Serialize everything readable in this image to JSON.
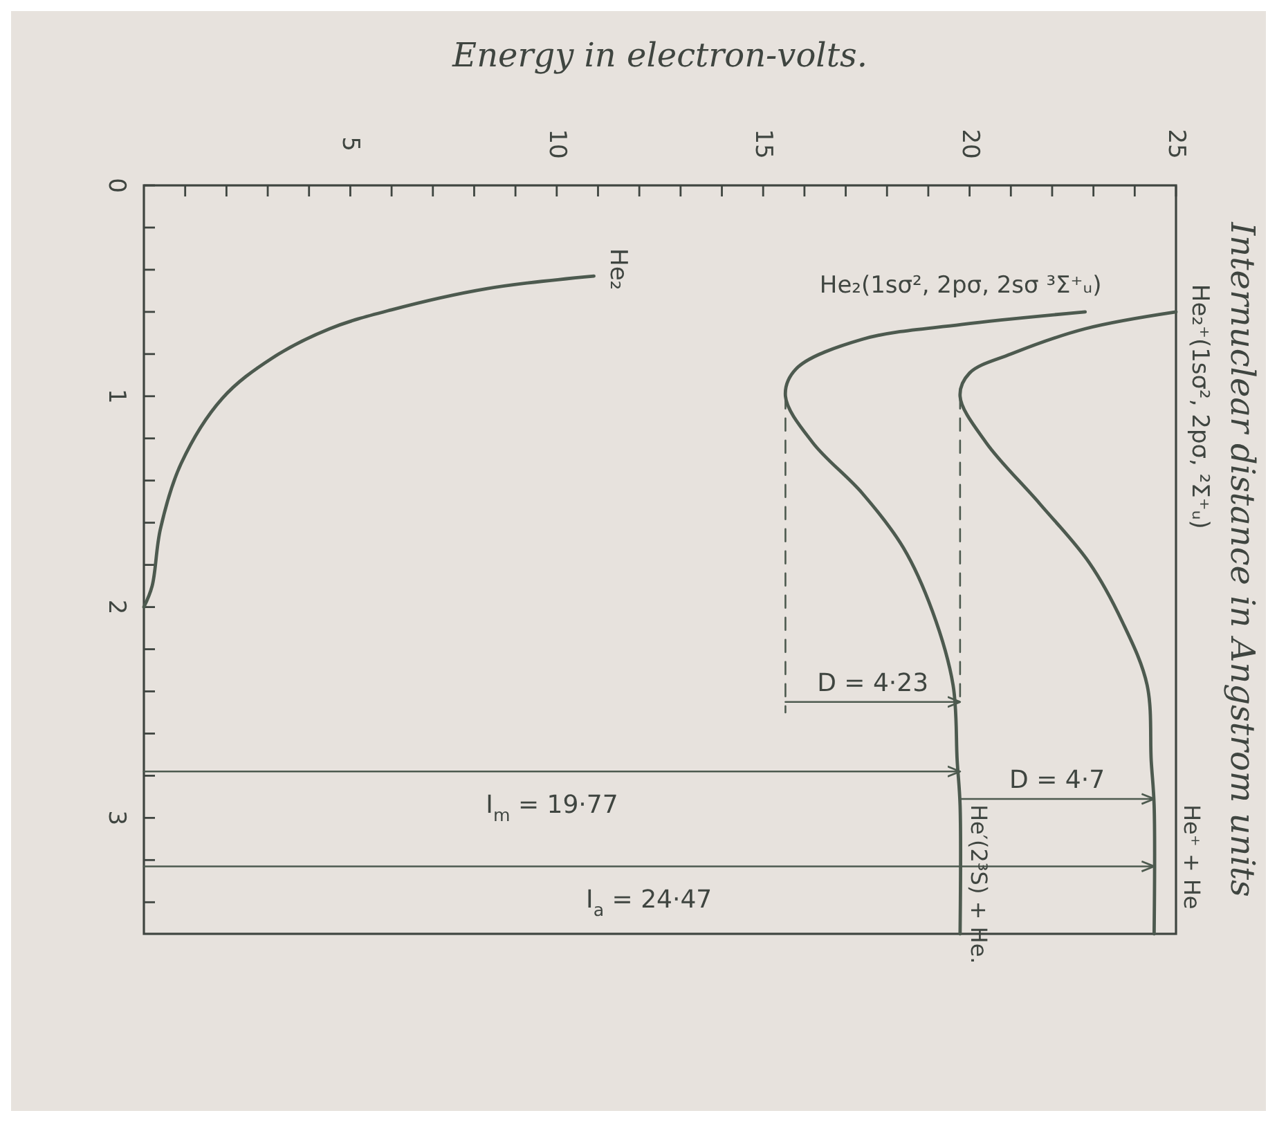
{
  "chart_data": {
    "type": "line",
    "xlabel": "Energy in electron-volts.",
    "ylabel": "Internuclear distance in Angstrom units",
    "xlim": [
      0,
      25
    ],
    "ylim": [
      3.55,
      0
    ],
    "xticks": [
      {
        "value": 1,
        "label": null
      },
      {
        "value": 2,
        "label": null
      },
      {
        "value": 3,
        "label": null
      },
      {
        "value": 4,
        "label": null
      },
      5,
      {
        "value": 6,
        "label": null
      },
      {
        "value": 7,
        "label": null
      },
      {
        "value": 8,
        "label": null
      },
      {
        "value": 9,
        "label": null
      },
      10,
      {
        "value": 11,
        "label": null
      },
      {
        "value": 12,
        "label": null
      },
      {
        "value": 13,
        "label": null
      },
      {
        "value": 14,
        "label": null
      },
      15,
      {
        "value": 16,
        "label": null
      },
      {
        "value": 17,
        "label": null
      },
      {
        "value": 18,
        "label": null
      },
      {
        "value": 19,
        "label": null
      },
      20,
      {
        "value": 21,
        "label": null
      },
      {
        "value": 22,
        "label": null
      },
      {
        "value": 23,
        "label": null
      },
      {
        "value": 24,
        "label": null
      },
      25
    ],
    "yticks": [
      0,
      {
        "value": 0.2,
        "label": null
      },
      {
        "value": 0.4,
        "label": null
      },
      {
        "value": 0.6,
        "label": null
      },
      {
        "value": 0.8,
        "label": null
      },
      1,
      {
        "value": 1.2,
        "label": null
      },
      {
        "value": 1.4,
        "label": null
      },
      {
        "value": 1.6,
        "label": null
      },
      {
        "value": 1.8,
        "label": null
      },
      2,
      {
        "value": 2.2,
        "label": null
      },
      {
        "value": 2.4,
        "label": null
      },
      {
        "value": 2.6,
        "label": null
      },
      {
        "value": 2.8,
        "label": null
      },
      3,
      {
        "value": 3.2,
        "label": null
      },
      {
        "value": 3.4,
        "label": null
      }
    ],
    "series": [
      {
        "name": "He₂",
        "color": "#4d5a4f",
        "x": [
          10.9,
          8.3,
          6.0,
          4.5,
          3.1,
          1.9,
          0.9,
          0.4,
          0.2,
          0
        ],
        "values": [
          0.43,
          0.49,
          0.59,
          0.68,
          0.82,
          1.01,
          1.32,
          1.63,
          1.9,
          2.0
        ]
      },
      {
        "name": "He₂(1sσ², 2pσ, 2sσ ³Σ⁺ᵤ)",
        "color": "#4d5a4f",
        "x": [
          22.8,
          19.8,
          17.4,
          15.8,
          15.54,
          16.2,
          17.4,
          18.4,
          19.1,
          19.6,
          19.7,
          19.77,
          19.77
        ],
        "values": [
          0.6,
          0.66,
          0.73,
          0.87,
          1.0,
          1.22,
          1.46,
          1.72,
          2.02,
          2.37,
          2.73,
          2.94,
          3.55
        ]
      },
      {
        "name": "He₂⁺(1sσ², 2pσ, ²Σ⁺ᵤ)",
        "color": "#4d5a4f",
        "x": [
          25.0,
          22.8,
          21.0,
          20.0,
          19.77,
          20.4,
          21.7,
          22.9,
          23.7,
          24.3,
          24.4,
          24.47,
          24.47
        ],
        "values": [
          0.6,
          0.68,
          0.8,
          0.89,
          1.0,
          1.22,
          1.51,
          1.79,
          2.07,
          2.37,
          2.73,
          2.94,
          3.55
        ]
      },
      {
        "color": "#4d5a4f",
        "line_style": "dashed",
        "x": [
          15.54,
          15.54
        ],
        "values": [
          1.0,
          2.5
        ]
      },
      {
        "color": "#4d5a4f",
        "line_style": "dashed",
        "x": [
          19.77,
          19.77
        ],
        "values": [
          1.0,
          2.45
        ]
      },
      {
        "color": "#4d5a4f",
        "x": [
          15.54,
          19.77
        ],
        "values": [
          2.45,
          2.45
        ]
      },
      {
        "color": "#4d5a4f",
        "x": [
          0,
          19.77
        ],
        "values": [
          2.78,
          2.78
        ]
      },
      {
        "color": "#4d5a4f",
        "x": [
          19.77,
          24.47
        ],
        "values": [
          2.91,
          2.91
        ]
      },
      {
        "color": "#4d5a4f",
        "x": [
          0,
          24.47
        ],
        "values": [
          3.23,
          3.23
        ]
      }
    ],
    "annotations": [
      "D = 4·23",
      "I$_{m}$ = 19·77",
      "D = 4·7",
      "I$_{a}$ = 24·47",
      "He⁺ + He",
      "He′(2³S) + He."
    ]
  }
}
